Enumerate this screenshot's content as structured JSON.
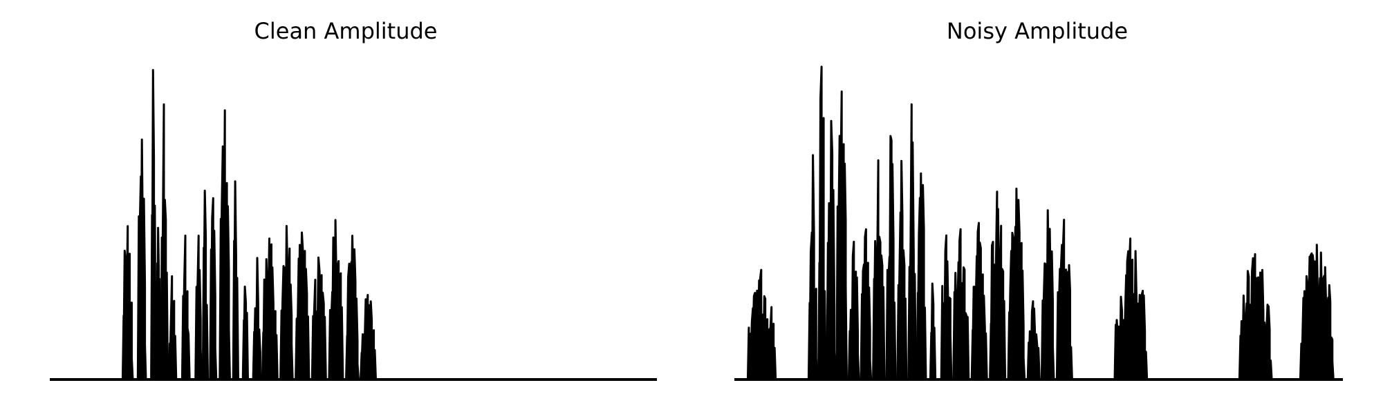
{
  "chart_data": [
    {
      "type": "area",
      "title": "Clean Amplitude",
      "xlabel": "",
      "ylabel": "",
      "axes_visible": false,
      "ylim": [
        0,
        1
      ],
      "xlim": [
        0,
        1
      ],
      "color": "#000000",
      "segments": [
        {
          "start": 0.12,
          "end": 0.14,
          "peak": 0.49
        },
        {
          "start": 0.145,
          "end": 0.16,
          "peak": 0.77
        },
        {
          "start": 0.167,
          "end": 0.176,
          "peak": 1.0
        },
        {
          "start": 0.176,
          "end": 0.183,
          "peak": 0.49
        },
        {
          "start": 0.183,
          "end": 0.196,
          "peak": 0.88
        },
        {
          "start": 0.196,
          "end": 0.21,
          "peak": 0.33
        },
        {
          "start": 0.218,
          "end": 0.232,
          "peak": 0.46
        },
        {
          "start": 0.24,
          "end": 0.252,
          "peak": 0.46
        },
        {
          "start": 0.252,
          "end": 0.262,
          "peak": 0.61
        },
        {
          "start": 0.264,
          "end": 0.276,
          "peak": 0.58
        },
        {
          "start": 0.28,
          "end": 0.3,
          "peak": 0.86
        },
        {
          "start": 0.302,
          "end": 0.312,
          "peak": 0.64
        },
        {
          "start": 0.318,
          "end": 0.328,
          "peak": 0.3
        },
        {
          "start": 0.335,
          "end": 0.35,
          "peak": 0.39
        },
        {
          "start": 0.35,
          "end": 0.38,
          "peak": 0.45
        },
        {
          "start": 0.38,
          "end": 0.405,
          "peak": 0.49
        },
        {
          "start": 0.405,
          "end": 0.432,
          "peak": 0.47
        },
        {
          "start": 0.432,
          "end": 0.46,
          "peak": 0.39
        },
        {
          "start": 0.46,
          "end": 0.488,
          "peak": 0.51
        },
        {
          "start": 0.488,
          "end": 0.512,
          "peak": 0.46
        },
        {
          "start": 0.512,
          "end": 0.542,
          "peak": 0.27
        }
      ]
    },
    {
      "type": "area",
      "title": "Noisy Amplitude",
      "xlabel": "",
      "ylabel": "",
      "axes_visible": false,
      "ylim": [
        0,
        1
      ],
      "xlim": [
        0,
        1
      ],
      "color": "#000000",
      "segments": [
        {
          "start": 0.022,
          "end": 0.078,
          "peak": 0.35
        },
        {
          "start": 0.122,
          "end": 0.138,
          "peak": 0.72
        },
        {
          "start": 0.138,
          "end": 0.152,
          "peak": 1.0
        },
        {
          "start": 0.152,
          "end": 0.168,
          "peak": 0.83
        },
        {
          "start": 0.168,
          "end": 0.188,
          "peak": 0.92
        },
        {
          "start": 0.188,
          "end": 0.208,
          "peak": 0.44
        },
        {
          "start": 0.208,
          "end": 0.228,
          "peak": 0.48
        },
        {
          "start": 0.228,
          "end": 0.25,
          "peak": 0.7
        },
        {
          "start": 0.25,
          "end": 0.268,
          "peak": 0.78
        },
        {
          "start": 0.268,
          "end": 0.286,
          "peak": 0.7
        },
        {
          "start": 0.286,
          "end": 0.3,
          "peak": 0.88
        },
        {
          "start": 0.3,
          "end": 0.318,
          "peak": 0.66
        },
        {
          "start": 0.322,
          "end": 0.332,
          "peak": 0.31
        },
        {
          "start": 0.34,
          "end": 0.36,
          "peak": 0.46
        },
        {
          "start": 0.36,
          "end": 0.39,
          "peak": 0.48
        },
        {
          "start": 0.39,
          "end": 0.42,
          "peak": 0.5
        },
        {
          "start": 0.42,
          "end": 0.45,
          "peak": 0.6
        },
        {
          "start": 0.45,
          "end": 0.482,
          "peak": 0.61
        },
        {
          "start": 0.482,
          "end": 0.505,
          "peak": 0.25
        },
        {
          "start": 0.505,
          "end": 0.53,
          "peak": 0.54
        },
        {
          "start": 0.53,
          "end": 0.56,
          "peak": 0.51
        },
        {
          "start": 0.625,
          "end": 0.69,
          "peak": 0.45
        },
        {
          "start": 0.83,
          "end": 0.895,
          "peak": 0.4
        },
        {
          "start": 0.93,
          "end": 0.998,
          "peak": 0.43
        }
      ]
    }
  ]
}
